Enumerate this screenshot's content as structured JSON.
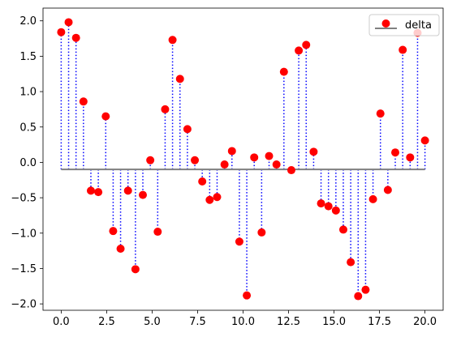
{
  "chart_data": {
    "type": "stem",
    "legend": {
      "label": "delta",
      "placement": "upper right"
    },
    "colors": {
      "marker": "#ff0000",
      "stem": "#0000ff",
      "baseline": "#808080",
      "axes": "#000000"
    },
    "xlim": [
      -0.999,
      20.999
    ],
    "ylim": [
      -2.09,
      2.18
    ],
    "baseline": -0.1,
    "grid": false,
    "xticks": [
      0,
      2.5,
      5,
      7.5,
      10,
      12.5,
      15,
      17.5,
      20
    ],
    "xtick_labels": [
      "0.0",
      "2.5",
      "5.0",
      "7.5",
      "10.0",
      "12.5",
      "15.0",
      "17.5",
      "20.0"
    ],
    "yticks": [
      2.0,
      1.5,
      1.0,
      0.5,
      0.0,
      -0.5,
      -1.0,
      -1.5,
      -2.0
    ],
    "ytick_labels": [
      "2.0",
      "1.5",
      "1.0",
      "0.5",
      "0.0",
      "−0.5",
      "−1.0",
      "−1.5",
      "−2.0"
    ],
    "x": [
      0.0,
      0.408,
      0.816,
      1.224,
      1.633,
      2.041,
      2.449,
      2.857,
      3.265,
      3.673,
      4.082,
      4.49,
      4.898,
      5.306,
      5.714,
      6.122,
      6.531,
      6.939,
      7.347,
      7.755,
      8.163,
      8.571,
      8.98,
      9.388,
      9.796,
      10.204,
      10.612,
      11.02,
      11.429,
      11.837,
      12.245,
      12.653,
      13.061,
      13.469,
      13.878,
      14.286,
      14.694,
      15.102,
      15.51,
      15.918,
      16.327,
      16.735,
      17.143,
      17.551,
      17.959,
      18.367,
      18.776,
      19.184,
      19.592,
      20.0
    ],
    "y": [
      1.84,
      1.98,
      1.76,
      0.86,
      -0.4,
      -0.42,
      0.65,
      -0.97,
      -1.22,
      -0.4,
      -1.51,
      -0.46,
      0.03,
      -0.98,
      0.75,
      1.73,
      1.18,
      0.47,
      0.03,
      -0.27,
      -0.53,
      -0.49,
      -0.03,
      0.16,
      -1.12,
      -1.88,
      0.07,
      -0.99,
      0.09,
      -0.03,
      1.28,
      -0.11,
      1.58,
      1.66,
      0.15,
      -0.58,
      -0.62,
      -0.68,
      -0.95,
      -1.41,
      -1.89,
      -1.8,
      -0.52,
      0.69,
      -0.39,
      0.14,
      1.59,
      0.07,
      1.83,
      0.31
    ]
  }
}
